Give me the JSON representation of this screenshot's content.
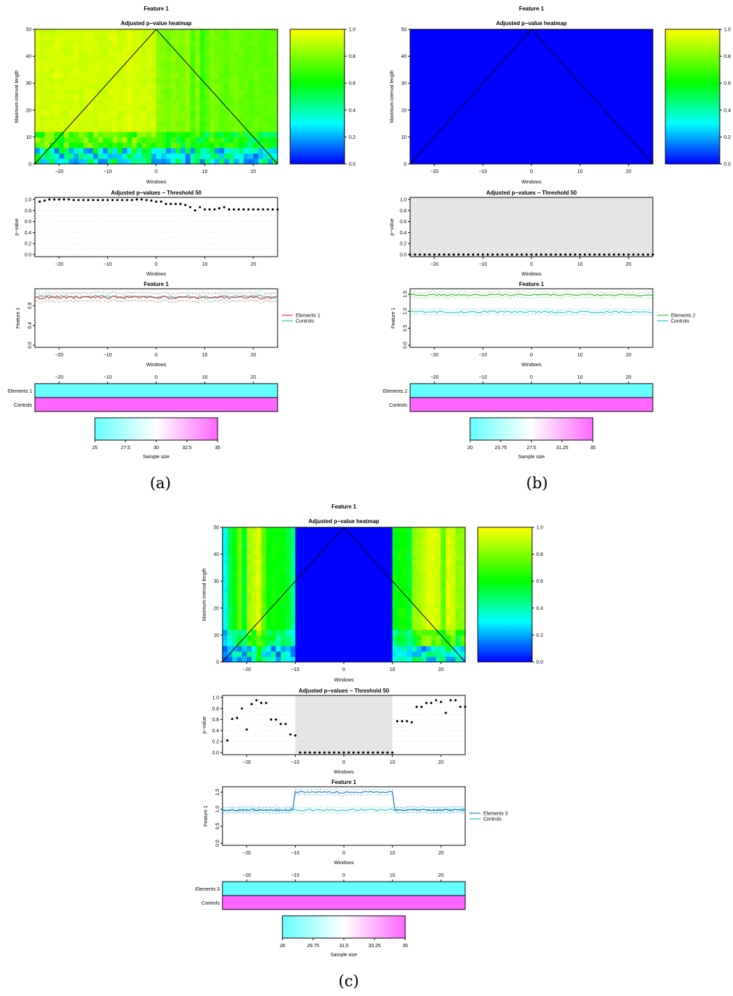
{
  "panels": [
    {
      "id": "a",
      "caption": "(a)",
      "feature_title": "Feature 1",
      "heatmap_title": "Adjusted p−value heatmap",
      "heatmap_ylabel": "Maximum interval length",
      "heatmap_xlabel": "Windows",
      "heatmap_yticks": [
        "0",
        "10",
        "20",
        "30",
        "40",
        "50"
      ],
      "colorbar_ticks": [
        "0.0",
        "0.2",
        "0.4",
        "0.6",
        "0.8",
        "1.0"
      ],
      "xticks": [
        "−20",
        "−10",
        "0",
        "10",
        "20"
      ],
      "pvalue_title": "Adjusted p−values − Threshold 50",
      "pvalue_ylabel": "p−value",
      "pvalue_xlabel": "Windows",
      "pvalue_yticks": [
        "0.0",
        "0.2",
        "0.4",
        "0.6",
        "0.8",
        "1.0"
      ],
      "feature_plot_title": "Feature 1",
      "feature_ylabel": "Feature 1",
      "feature_xlabel": "Windows",
      "feature_yticks": [
        "0.0",
        "0.4",
        "0.8"
      ],
      "legend": [
        "Elements 1",
        "Controls"
      ],
      "sample_rows": [
        "Elements 1",
        "Controls"
      ],
      "sample_ticks": [
        "25",
        "27.5",
        "30",
        "32.5",
        "35"
      ],
      "sample_label": "Sample size"
    },
    {
      "id": "b",
      "caption": "(b)",
      "feature_title": "Feature 1",
      "heatmap_title": "Adjusted p−value heatmap",
      "heatmap_ylabel": "Maximum interval length",
      "heatmap_xlabel": "Windows",
      "heatmap_yticks": [
        "0",
        "10",
        "20",
        "30",
        "40",
        "50"
      ],
      "colorbar_ticks": [
        "0.0",
        "0.2",
        "0.4",
        "0.6",
        "0.8",
        "1.0"
      ],
      "xticks": [
        "−20",
        "−10",
        "0",
        "10",
        "20"
      ],
      "pvalue_title": "Adjusted p−values − Threshold 50",
      "pvalue_ylabel": "p−value",
      "pvalue_xlabel": "Windows",
      "pvalue_yticks": [
        "0.0",
        "0.2",
        "0.4",
        "0.6",
        "0.8",
        "1.0"
      ],
      "feature_plot_title": "Feature 1",
      "feature_ylabel": "Feature 1",
      "feature_xlabel": "Windows",
      "feature_yticks": [
        "0.0",
        "0.5",
        "1.0",
        "1.5"
      ],
      "legend": [
        "Elements 2",
        "Controls"
      ],
      "sample_rows": [
        "Elements 2",
        "Controls"
      ],
      "sample_ticks": [
        "20",
        "23.75",
        "27.5",
        "31.25",
        "35"
      ],
      "sample_label": "Sample size"
    },
    {
      "id": "c",
      "caption": "(c)",
      "feature_title": "Feature 1",
      "heatmap_title": "Adjusted p−value heatmap",
      "heatmap_ylabel": "Maximum interval length",
      "heatmap_xlabel": "Windows",
      "heatmap_yticks": [
        "0",
        "10",
        "20",
        "30",
        "40",
        "50"
      ],
      "colorbar_ticks": [
        "0.0",
        "0.2",
        "0.4",
        "0.6",
        "0.8",
        "1.0"
      ],
      "xticks": [
        "−20",
        "−10",
        "0",
        "10",
        "20"
      ],
      "pvalue_title": "Adjusted p−values − Threshold 50",
      "pvalue_ylabel": "p−value",
      "pvalue_xlabel": "Windows",
      "pvalue_yticks": [
        "0.0",
        "0.2",
        "0.4",
        "0.6",
        "0.8",
        "1.0"
      ],
      "feature_plot_title": "Feature 1",
      "feature_ylabel": "Feature 1",
      "feature_xlabel": "Windows",
      "feature_yticks": [
        "0.0",
        "0.5",
        "1.0",
        "1.5"
      ],
      "legend": [
        "Elements 3",
        "Controls"
      ],
      "sample_rows": [
        "Elements 3",
        "Controls"
      ],
      "sample_ticks": [
        "28",
        "29.75",
        "31.5",
        "33.25",
        "35"
      ],
      "sample_label": "Sample size"
    }
  ],
  "chart_data": [
    {
      "panel": "a",
      "type": "heatmap",
      "title": "Adjusted p−value heatmap",
      "xlabel": "Windows",
      "ylabel": "Maximum interval length",
      "xlim": [
        -25,
        25
      ],
      "ylim": [
        0,
        50
      ],
      "colorbar_range": [
        0,
        1
      ],
      "column_base_pvalues": [
        0.95,
        0.92,
        0.93,
        0.92,
        0.94,
        0.93,
        0.92,
        0.93,
        0.94,
        0.92,
        0.93,
        0.94,
        0.92,
        0.93,
        0.92,
        0.93,
        0.94,
        0.92,
        0.93,
        0.95,
        0.94,
        0.93,
        0.92,
        0.93,
        0.92,
        0.82,
        0.8,
        0.78,
        0.82,
        0.8,
        0.79,
        0.83,
        0.72,
        0.8,
        0.68,
        0.74,
        0.8,
        0.78,
        0.76,
        0.75,
        0.77,
        0.78,
        0.76,
        0.75,
        0.74,
        0.76,
        0.75,
        0.74,
        0.75,
        0.76
      ]
    },
    {
      "panel": "a",
      "type": "scatter",
      "title": "Adjusted p−values − Threshold 50",
      "xlabel": "Windows",
      "ylabel": "p−value",
      "xlim": [
        -25,
        25
      ],
      "ylim": [
        0,
        1
      ],
      "x": [
        -24,
        -23,
        -22,
        -21,
        -20,
        -19,
        -18,
        -17,
        -16,
        -15,
        -14,
        -13,
        -12,
        -11,
        -10,
        -9,
        -8,
        -7,
        -6,
        -5,
        -4,
        -3,
        -2,
        -1,
        0,
        1,
        2,
        3,
        4,
        5,
        6,
        7,
        8,
        9,
        10,
        11,
        12,
        13,
        14,
        15,
        16,
        17,
        18,
        19,
        20,
        21,
        22,
        23,
        24,
        25
      ],
      "y": [
        0.96,
        0.98,
        1.0,
        1.0,
        1.0,
        1.0,
        1.0,
        0.99,
        0.99,
        0.99,
        0.99,
        0.99,
        0.99,
        0.99,
        0.99,
        0.99,
        0.99,
        0.99,
        0.99,
        0.99,
        1.0,
        1.0,
        0.99,
        0.98,
        0.96,
        0.96,
        0.92,
        0.92,
        0.92,
        0.92,
        0.9,
        0.86,
        0.8,
        0.86,
        0.82,
        0.82,
        0.82,
        0.84,
        0.86,
        0.82,
        0.82,
        0.82,
        0.82,
        0.82,
        0.82,
        0.82,
        0.82,
        0.82,
        0.82,
        0.82
      ]
    },
    {
      "panel": "a",
      "type": "line",
      "title": "Feature 1",
      "xlabel": "Windows",
      "ylabel": "Feature 1",
      "xlim": [
        -25,
        25
      ],
      "ylim": [
        0,
        1.1
      ],
      "series": [
        {
          "name": "Elements 1",
          "color": "#ee4444",
          "mean": 0.97
        },
        {
          "name": "Controls",
          "color": "#33cccc",
          "mean": 0.98
        }
      ]
    },
    {
      "panel": "b",
      "type": "heatmap",
      "title": "Adjusted p−value heatmap",
      "xlabel": "Windows",
      "ylabel": "Maximum interval length",
      "xlim": [
        -25,
        25
      ],
      "ylim": [
        0,
        50
      ],
      "colorbar_range": [
        0,
        1
      ],
      "column_base_pvalues": [
        0,
        0,
        0,
        0,
        0,
        0,
        0,
        0,
        0,
        0,
        0,
        0,
        0,
        0,
        0,
        0,
        0,
        0,
        0,
        0,
        0,
        0,
        0,
        0,
        0,
        0,
        0,
        0,
        0,
        0,
        0,
        0,
        0,
        0,
        0,
        0,
        0,
        0,
        0,
        0,
        0,
        0,
        0,
        0,
        0,
        0,
        0,
        0,
        0,
        0
      ]
    },
    {
      "panel": "b",
      "type": "scatter",
      "title": "Adjusted p−values − Threshold 50",
      "xlabel": "Windows",
      "ylabel": "p−value",
      "xlim": [
        -25,
        25
      ],
      "ylim": [
        0,
        1
      ],
      "significant_region": [
        -25,
        25
      ],
      "x": [
        -25,
        -24,
        -23,
        -22,
        -21,
        -20,
        -19,
        -18,
        -17,
        -16,
        -15,
        -14,
        -13,
        -12,
        -11,
        -10,
        -9,
        -8,
        -7,
        -6,
        -5,
        -4,
        -3,
        -2,
        -1,
        0,
        1,
        2,
        3,
        4,
        5,
        6,
        7,
        8,
        9,
        10,
        11,
        12,
        13,
        14,
        15,
        16,
        17,
        18,
        19,
        20,
        21,
        22,
        23,
        24,
        25
      ],
      "y": [
        0,
        0,
        0,
        0,
        0,
        0,
        0,
        0,
        0,
        0,
        0,
        0,
        0,
        0,
        0,
        0,
        0,
        0,
        0,
        0,
        0,
        0,
        0,
        0,
        0,
        0,
        0,
        0,
        0,
        0,
        0,
        0,
        0,
        0,
        0,
        0,
        0,
        0,
        0,
        0,
        0,
        0,
        0,
        0,
        0,
        0,
        0,
        0,
        0,
        0,
        0
      ]
    },
    {
      "panel": "b",
      "type": "line",
      "title": "Feature 1",
      "xlabel": "Windows",
      "ylabel": "Feature 1",
      "xlim": [
        -25,
        25
      ],
      "ylim": [
        0,
        1.6
      ],
      "series": [
        {
          "name": "Elements 2",
          "color": "#44bb44",
          "mean": 1.48
        },
        {
          "name": "Controls",
          "color": "#33cccc",
          "mean": 0.98
        }
      ]
    },
    {
      "panel": "c",
      "type": "heatmap",
      "title": "Adjusted p−value heatmap",
      "xlabel": "Windows",
      "ylabel": "Maximum interval length",
      "xlim": [
        -25,
        25
      ],
      "ylim": [
        0,
        50
      ],
      "colorbar_range": [
        0,
        1
      ],
      "column_base_pvalues": [
        0.3,
        0.5,
        0.6,
        0.75,
        0.55,
        0.85,
        0.9,
        0.95,
        0.75,
        0.6,
        0.62,
        0.6,
        0.6,
        0.55,
        0.45,
        0,
        0,
        0,
        0,
        0,
        0,
        0,
        0,
        0,
        0,
        0,
        0,
        0,
        0,
        0,
        0,
        0,
        0,
        0,
        0,
        0.6,
        0.62,
        0.62,
        0.55,
        0.82,
        0.85,
        0.9,
        0.95,
        0.95,
        0.92,
        0.75,
        0.95,
        0.92,
        0.82,
        0.82
      ]
    },
    {
      "panel": "c",
      "type": "scatter",
      "title": "Adjusted p−values − Threshold 50",
      "xlabel": "Windows",
      "ylabel": "p−value",
      "xlim": [
        -25,
        25
      ],
      "ylim": [
        0,
        1
      ],
      "significant_region": [
        -10,
        10
      ],
      "x": [
        -24,
        -23,
        -22,
        -21,
        -20,
        -19,
        -18,
        -17,
        -16,
        -15,
        -14,
        -13,
        -12,
        -11,
        -10,
        -9,
        -8,
        -7,
        -6,
        -5,
        -4,
        -3,
        -2,
        -1,
        0,
        1,
        2,
        3,
        4,
        5,
        6,
        7,
        8,
        9,
        10,
        11,
        12,
        13,
        14,
        15,
        16,
        17,
        18,
        19,
        20,
        21,
        22,
        23,
        24,
        25
      ],
      "y": [
        0.22,
        0.61,
        0.63,
        0.8,
        0.42,
        0.88,
        0.95,
        0.9,
        0.9,
        0.6,
        0.6,
        0.52,
        0.52,
        0.33,
        0.31,
        0,
        0,
        0,
        0,
        0,
        0,
        0,
        0,
        0,
        0,
        0,
        0,
        0,
        0,
        0,
        0,
        0,
        0,
        0,
        0,
        0.57,
        0.57,
        0.57,
        0.55,
        0.83,
        0.83,
        0.9,
        0.9,
        0.95,
        0.92,
        0.72,
        0.95,
        0.95,
        0.83,
        0.83
      ]
    },
    {
      "panel": "c",
      "type": "line",
      "title": "Feature 1",
      "xlabel": "Windows",
      "ylabel": "Feature 1",
      "xlim": [
        -25,
        25
      ],
      "ylim": [
        0,
        1.6
      ],
      "series": [
        {
          "name": "Elements 3",
          "color": "#2e86c8",
          "mean_outside": 0.98,
          "mean_inside": 1.5,
          "inside_range": [
            -10,
            10
          ]
        },
        {
          "name": "Controls",
          "color": "#33cccc",
          "mean": 0.98
        }
      ]
    }
  ],
  "colors": {
    "heat_low": "#0000ff",
    "heat_mid": "#00ff00",
    "heat_high": "#ffff00",
    "sample_low": "#66ffff",
    "sample_high": "#ff66ff",
    "significant_bg": "#e6e6e6"
  }
}
